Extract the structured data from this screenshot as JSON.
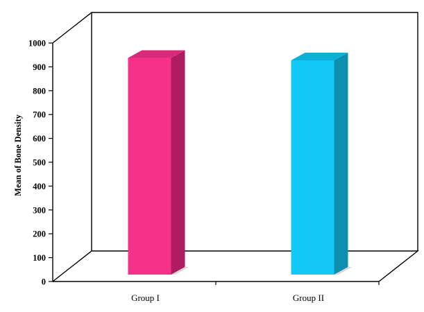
{
  "chart_data": {
    "type": "bar",
    "title": "",
    "xlabel": "",
    "ylabel": "Mean of Bone Density",
    "ylim": [
      0,
      1000
    ],
    "yticks": [
      0,
      100,
      200,
      300,
      400,
      500,
      600,
      700,
      800,
      900,
      1000
    ],
    "grid": false,
    "legend": "none",
    "style": "3d",
    "categories": [
      "Group I",
      "Group II"
    ],
    "values": [
      920,
      910
    ],
    "colors": {
      "Group I": {
        "front": "#f5318a",
        "side": "#b01c62",
        "top": "#d82a7a"
      },
      "Group II": {
        "front": "#12c8f4",
        "side": "#0f8fb0",
        "top": "#0fb0d8"
      }
    }
  }
}
